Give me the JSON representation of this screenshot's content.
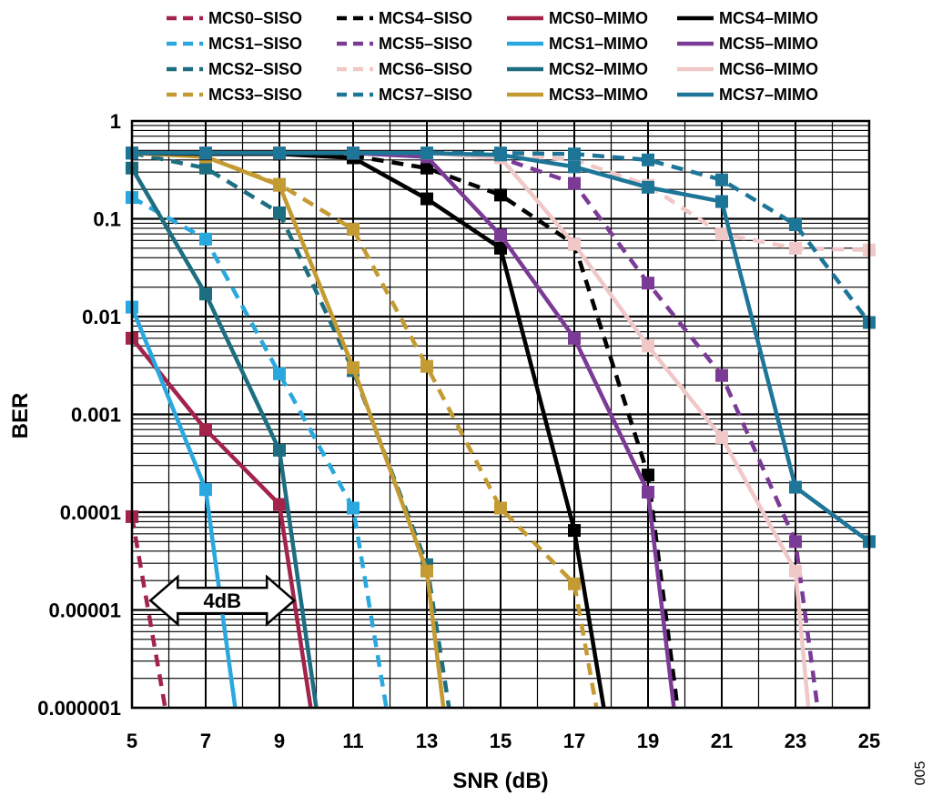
{
  "chart_data": {
    "type": "line",
    "xlabel": "SNR (dB)",
    "ylabel": "BER",
    "xlim": [
      5,
      25
    ],
    "ylim": [
      1e-06,
      1
    ],
    "yscale": "log",
    "grid": true,
    "legend_placement": "top",
    "x_ticks": [
      5,
      7,
      9,
      11,
      13,
      15,
      17,
      19,
      21,
      23,
      25
    ],
    "x_tick_labels": [
      "5",
      "7",
      "9",
      "11",
      "13",
      "15",
      "17",
      "19",
      "21",
      "23",
      "25"
    ],
    "y_ticks": [
      1,
      0.1,
      0.01,
      0.001,
      0.0001,
      1e-05,
      1e-06
    ],
    "y_tick_labels": [
      "1",
      "0.1",
      "0.01",
      "0.001",
      "0.0001",
      "0.00001",
      "0.000001"
    ],
    "series": [
      {
        "name": "MCS0–SISO",
        "color": "#a3234a",
        "dash": true,
        "points": [
          [
            5,
            9e-05
          ],
          [
            5.9,
            1e-06
          ]
        ]
      },
      {
        "name": "MCS1–SISO",
        "color": "#29a8df",
        "dash": true,
        "points": [
          [
            5,
            0.165
          ],
          [
            7,
            0.062
          ],
          [
            9,
            0.0026
          ],
          [
            11,
            0.00011
          ],
          [
            11.9,
            1e-06
          ]
        ]
      },
      {
        "name": "MCS2–SISO",
        "color": "#1d6e80",
        "dash": true,
        "points": [
          [
            5,
            0.47
          ],
          [
            7,
            0.33
          ],
          [
            9,
            0.115
          ],
          [
            11,
            0.0028
          ],
          [
            13,
            2.9e-05
          ],
          [
            13.6,
            1e-06
          ]
        ]
      },
      {
        "name": "MCS3–SISO",
        "color": "#c49a32",
        "dash": true,
        "points": [
          [
            5,
            0.47
          ],
          [
            7,
            0.43
          ],
          [
            9,
            0.225
          ],
          [
            11,
            0.078
          ],
          [
            13,
            0.0031
          ],
          [
            15,
            0.00011
          ],
          [
            17,
            1.85e-05
          ],
          [
            17.6,
            1e-06
          ]
        ]
      },
      {
        "name": "MCS4–SISO",
        "color": "#000000",
        "dash": true,
        "points": [
          [
            5,
            0.47
          ],
          [
            7,
            0.46
          ],
          [
            9,
            0.46
          ],
          [
            11,
            0.44
          ],
          [
            13,
            0.33
          ],
          [
            15,
            0.175
          ],
          [
            17,
            0.055
          ],
          [
            19,
            0.00024
          ],
          [
            19.8,
            1e-06
          ]
        ]
      },
      {
        "name": "MCS5–SISO",
        "color": "#7b3a96",
        "dash": true,
        "points": [
          [
            5,
            0.47
          ],
          [
            7,
            0.47
          ],
          [
            9,
            0.47
          ],
          [
            11,
            0.47
          ],
          [
            13,
            0.47
          ],
          [
            15,
            0.42
          ],
          [
            17,
            0.23
          ],
          [
            19,
            0.022
          ],
          [
            21,
            0.0025
          ],
          [
            23,
            5e-05
          ],
          [
            23.6,
            1e-06
          ]
        ]
      },
      {
        "name": "MCS6–SISO",
        "color": "#f0c8c8",
        "dash": true,
        "points": [
          [
            5,
            0.47
          ],
          [
            7,
            0.47
          ],
          [
            9,
            0.47
          ],
          [
            11,
            0.47
          ],
          [
            13,
            0.47
          ],
          [
            15,
            0.47
          ],
          [
            17,
            0.4
          ],
          [
            19,
            0.22
          ],
          [
            21,
            0.07
          ],
          [
            23,
            0.05
          ],
          [
            25,
            0.048
          ]
        ]
      },
      {
        "name": "MCS7–SISO",
        "color": "#1d7597",
        "dash": true,
        "points": [
          [
            5,
            0.47
          ],
          [
            7,
            0.47
          ],
          [
            9,
            0.47
          ],
          [
            11,
            0.47
          ],
          [
            13,
            0.47
          ],
          [
            15,
            0.47
          ],
          [
            17,
            0.46
          ],
          [
            19,
            0.4
          ],
          [
            21,
            0.25
          ],
          [
            23,
            0.087
          ],
          [
            25,
            0.0087
          ]
        ]
      },
      {
        "name": "MCS0–MIMO",
        "color": "#a3234a",
        "dash": false,
        "points": [
          [
            5,
            0.006
          ],
          [
            7,
            0.0007
          ],
          [
            9,
            0.00012
          ],
          [
            9.85,
            1e-06
          ]
        ]
      },
      {
        "name": "MCS1–MIMO",
        "color": "#29a8df",
        "dash": false,
        "points": [
          [
            5,
            0.0125
          ],
          [
            7,
            0.00017
          ],
          [
            7.8,
            1e-06
          ]
        ]
      },
      {
        "name": "MCS2–MIMO",
        "color": "#1d6e80",
        "dash": false,
        "points": [
          [
            5,
            0.33
          ],
          [
            7,
            0.017
          ],
          [
            9,
            0.00043
          ],
          [
            10.0,
            1e-06
          ]
        ]
      },
      {
        "name": "MCS3–MIMO",
        "color": "#c49a32",
        "dash": false,
        "points": [
          [
            5,
            0.47
          ],
          [
            7,
            0.43
          ],
          [
            9,
            0.22
          ],
          [
            11,
            0.003
          ],
          [
            13,
            2.5e-05
          ],
          [
            13.45,
            1e-06
          ]
        ]
      },
      {
        "name": "MCS4–MIMO",
        "color": "#000000",
        "dash": false,
        "points": [
          [
            5,
            0.47
          ],
          [
            7,
            0.46
          ],
          [
            9,
            0.46
          ],
          [
            11,
            0.42
          ],
          [
            13,
            0.16
          ],
          [
            15,
            0.05
          ],
          [
            17,
            6.5e-05
          ],
          [
            17.8,
            1e-06
          ]
        ]
      },
      {
        "name": "MCS5–MIMO",
        "color": "#7b3a96",
        "dash": false,
        "points": [
          [
            5,
            0.47
          ],
          [
            7,
            0.47
          ],
          [
            9,
            0.47
          ],
          [
            11,
            0.47
          ],
          [
            13,
            0.43
          ],
          [
            15,
            0.068
          ],
          [
            17,
            0.006
          ],
          [
            19,
            0.00016
          ],
          [
            19.7,
            1e-06
          ]
        ]
      },
      {
        "name": "MCS6–MIMO",
        "color": "#f0c8c8",
        "dash": false,
        "points": [
          [
            5,
            0.47
          ],
          [
            7,
            0.47
          ],
          [
            9,
            0.47
          ],
          [
            11,
            0.47
          ],
          [
            13,
            0.47
          ],
          [
            15,
            0.42
          ],
          [
            17,
            0.055
          ],
          [
            19,
            0.005
          ],
          [
            21,
            0.00058
          ],
          [
            23,
            2.5e-05
          ],
          [
            23.35,
            1e-06
          ]
        ]
      },
      {
        "name": "MCS7–MIMO",
        "color": "#1d7597",
        "dash": false,
        "points": [
          [
            5,
            0.47
          ],
          [
            7,
            0.47
          ],
          [
            9,
            0.47
          ],
          [
            11,
            0.47
          ],
          [
            13,
            0.47
          ],
          [
            15,
            0.45
          ],
          [
            17,
            0.34
          ],
          [
            19,
            0.21
          ],
          [
            21,
            0.15
          ],
          [
            23,
            0.00018
          ],
          [
            25,
            5e-05
          ]
        ]
      }
    ],
    "annotations": [
      {
        "type": "double-arrow",
        "label": "4dB",
        "x_from": 5.5,
        "x_to": 9.4,
        "y": 1.25e-05
      }
    ]
  },
  "figure_id": "005"
}
